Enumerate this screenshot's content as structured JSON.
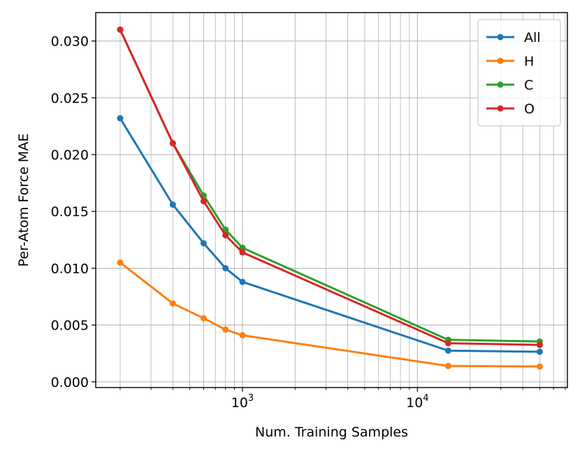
{
  "chart_data": {
    "type": "line",
    "title": "",
    "xlabel": "Num. Training Samples",
    "ylabel": "Per-Atom Force MAE",
    "xscale": "log",
    "xlim": [
      145,
      72000
    ],
    "ylim": [
      -0.0005,
      0.0325
    ],
    "grid": true,
    "grid_minor_x": true,
    "legend_position": "top-right",
    "x": [
      200,
      400,
      600,
      800,
      1000,
      15000,
      50000
    ],
    "series": [
      {
        "name": "All",
        "color": "#1f77b4",
        "values": [
          0.0232,
          0.0156,
          0.0122,
          0.01,
          0.0088,
          0.00275,
          0.00265
        ]
      },
      {
        "name": "H",
        "color": "#ff7f0e",
        "values": [
          0.0105,
          0.0069,
          0.0056,
          0.0046,
          0.0041,
          0.0014,
          0.00135
        ]
      },
      {
        "name": "C",
        "color": "#2ca02c",
        "values": [
          0.031,
          0.021,
          0.0164,
          0.0134,
          0.0118,
          0.0037,
          0.00355
        ]
      },
      {
        "name": "O",
        "color": "#d62728",
        "values": [
          0.031,
          0.021,
          0.0159,
          0.0129,
          0.0114,
          0.0034,
          0.00325
        ]
      }
    ],
    "y_ticks": [
      {
        "value": 0.0,
        "label": "0.000"
      },
      {
        "value": 0.005,
        "label": "0.005"
      },
      {
        "value": 0.01,
        "label": "0.010"
      },
      {
        "value": 0.015,
        "label": "0.015"
      },
      {
        "value": 0.02,
        "label": "0.020"
      },
      {
        "value": 0.025,
        "label": "0.025"
      },
      {
        "value": 0.03,
        "label": "0.030"
      }
    ],
    "x_major_ticks": [
      {
        "value": 1000,
        "base": "10",
        "exp": "3"
      },
      {
        "value": 10000,
        "base": "10",
        "exp": "4"
      }
    ]
  }
}
